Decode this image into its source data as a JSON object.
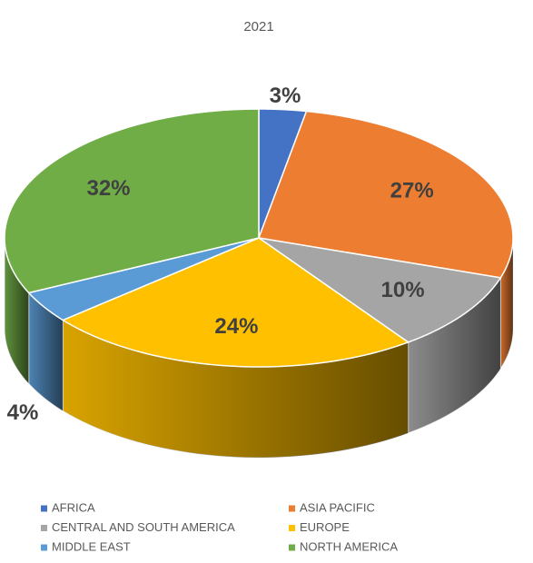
{
  "chart_data": {
    "type": "pie3d",
    "title": "2021",
    "categories": [
      "AFRICA",
      "ASIA PACIFIC",
      "CENTRAL AND SOUTH AMERICA",
      "EUROPE",
      "MIDDLE EAST",
      "NORTH AMERICA"
    ],
    "values": [
      3,
      27,
      10,
      24,
      4,
      32
    ],
    "value_labels": [
      "3%",
      "27%",
      "10%",
      "24%",
      "4%",
      "32%"
    ],
    "colors": [
      "#4472c4",
      "#ed7d31",
      "#a5a5a5",
      "#ffc000",
      "#5b9bd5",
      "#70ad47"
    ]
  }
}
